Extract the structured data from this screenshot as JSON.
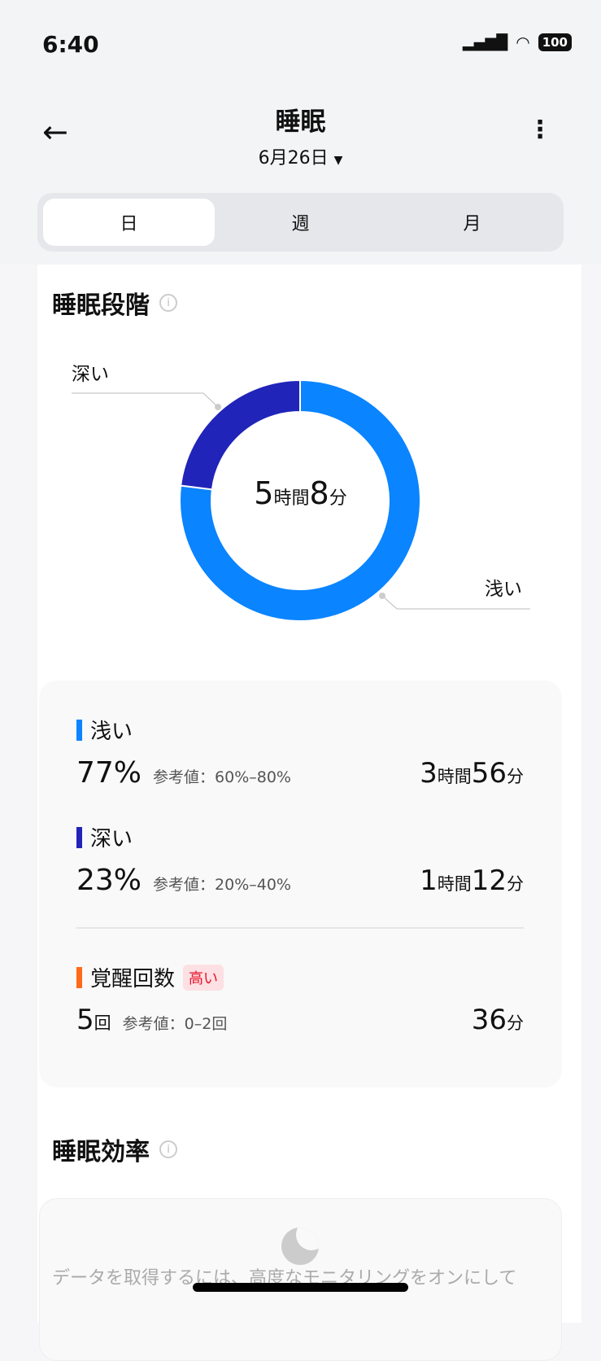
{
  "status": {
    "time": "6:40",
    "battery": "100"
  },
  "header": {
    "title": "睡眠",
    "date": "6月26日",
    "tabs": [
      "日",
      "週",
      "月"
    ],
    "active_tab": 0
  },
  "stages": {
    "title": "睡眠段階",
    "total": {
      "h": "5",
      "h_unit": "時間",
      "m": "8",
      "m_unit": "分"
    },
    "donut": [
      {
        "name": "浅い",
        "percent": 77,
        "color": "#0a84ff"
      },
      {
        "name": "深い",
        "percent": 23,
        "color": "#2124b8"
      }
    ]
  },
  "stats": [
    {
      "label": "浅い",
      "color": "#0a84ff",
      "percent": "77%",
      "ref": "参考値：60%–80%",
      "h": "3",
      "m": "56",
      "h_unit": "時間",
      "m_unit": "分"
    },
    {
      "label": "深い",
      "color": "#2124b8",
      "percent": "23%",
      "ref": "参考値：20%–40%",
      "h": "1",
      "m": "12",
      "h_unit": "時間",
      "m_unit": "分"
    }
  ],
  "wake": {
    "label": "覚醒回数",
    "color": "#ff6a1a",
    "badge": "高い",
    "count": "5",
    "count_unit": "回",
    "ref": "参考値：0–2回",
    "m": "36",
    "m_unit": "分"
  },
  "efficiency": {
    "title": "睡眠効率",
    "message": "データを取得するには、高度なモニタリングをオンにして"
  }
}
